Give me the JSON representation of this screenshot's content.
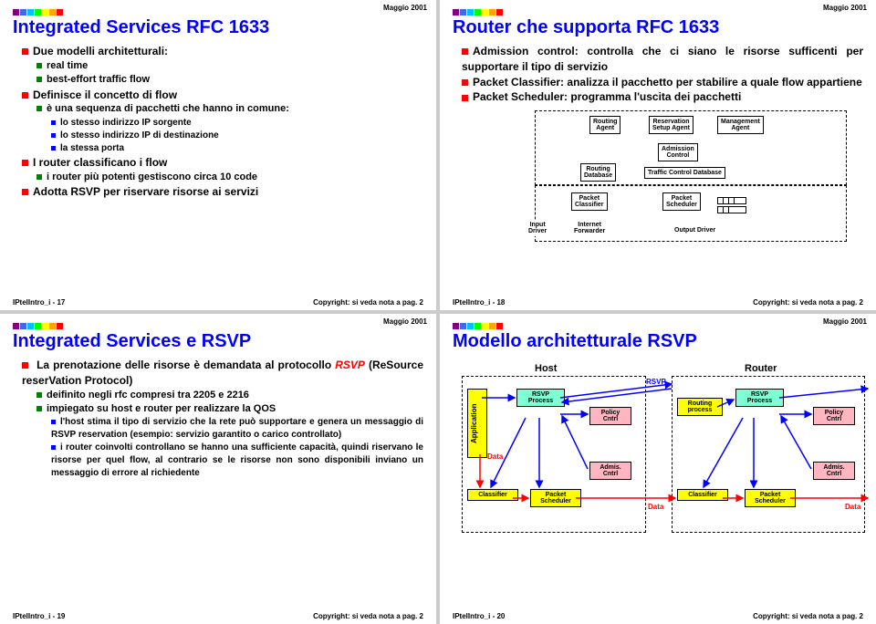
{
  "date": "Maggio 2001",
  "copyright": "Copyright: si veda nota a pag. 2",
  "slide17": {
    "id": "IPtelIntro_i - 17",
    "title": "Integrated Services RFC 1633",
    "b1_1": "Due modelli architetturali:",
    "b2_1": "real time",
    "b2_2": "best-effort traffic flow",
    "b1_2": "Definisce il concetto di flow",
    "b2_3": "è una sequenza di pacchetti che hanno in comune:",
    "b3_1": "lo stesso indirizzo IP sorgente",
    "b3_2": "lo stesso indirizzo IP di destinazione",
    "b3_3": "la stessa porta",
    "b1_3": "I router classificano i flow",
    "b2_4": "i router più potenti gestiscono circa 10 code",
    "b1_4": "Adotta RSVP per riservare risorse ai servizi"
  },
  "slide18": {
    "id": "IPtelIntro_i - 18",
    "title": "Router che supporta RFC 1633",
    "b1_1": "Admission control: controlla che ci siano le risorse sufficenti per supportare il tipo di servizio",
    "b1_2": "Packet Classifier: analizza il pacchetto per stabilire a quale flow appartiene",
    "b1_3": "Packet Scheduler: programma l'uscita dei pacchetti",
    "dbox": {
      "routing_agent": "Routing\nAgent",
      "reservation": "Reservation\nSetup Agent",
      "management": "Management\nAgent",
      "admission": "Admission\nControl",
      "routing_db": "Routing\nDatabase",
      "traffic_db": "Traffic Control Database",
      "pkt_classifier": "Packet\nClassifier",
      "pkt_scheduler": "Packet\nScheduler",
      "input_driver": "Input\nDriver",
      "internet_fwd": "Internet\nForwarder",
      "output_driver": "Output Driver"
    }
  },
  "slide19": {
    "id": "IPtelIntro_i - 19",
    "title": "Integrated Services e RSVP",
    "b1_1_pre": "La prenotazione delle risorse è demandata al protocollo ",
    "b1_1_rsvp": "RSVP",
    "b1_1_post": " (ReSource reserVation Protocol)",
    "b2_1": "deifinito negli rfc compresi tra 2205 e 2216",
    "b2_2": "impiegato su host e router per realizzare la QOS",
    "b3_1": "l'host stima il tipo di servizio che la rete può supportare e genera un messaggio di RSVP reservation (esempio: servizio garantito o carico controllato)",
    "b3_2": "i router coinvolti controllano se hanno una sufficiente capacità, quindi riservano le risorse per quel flow, al contrario se le risorse non sono disponibili inviano un messaggio di errore al richiedente"
  },
  "slide20": {
    "id": "IPtelIntro_i - 20",
    "title": "Modello architetturale RSVP",
    "labels": {
      "host": "Host",
      "router": "Router",
      "rsvp": "RSVP",
      "data": "Data",
      "application": "Application",
      "rsvp_process": "RSVP\nProcess",
      "policy_cntrl": "Policy\nCntrl",
      "admis_cntrl": "Admis.\nCntrl",
      "classifier": "Classifier",
      "pkt_scheduler": "Packet\nScheduler",
      "routing_process": "Routing\nprocess"
    }
  }
}
